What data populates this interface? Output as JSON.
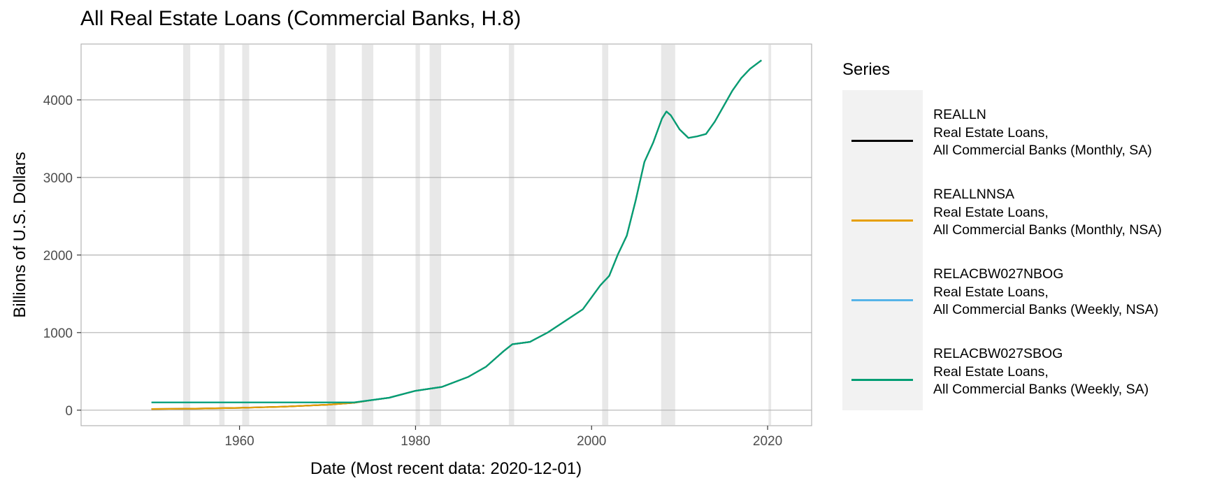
{
  "chart_data": {
    "type": "line",
    "title": "All Real Estate Loans (Commercial Banks, H.8)",
    "xlabel": "Date (Most recent data: 2020-12-01)",
    "ylabel": "Billions of U.S. Dollars",
    "xlim": [
      1942,
      2025
    ],
    "ylim": [
      -200,
      4720
    ],
    "x_ticks": [
      1960,
      1980,
      2000,
      2020
    ],
    "y_ticks": [
      0,
      1000,
      2000,
      3000,
      4000
    ],
    "x_tick_labels": [
      "1960",
      "1980",
      "2000",
      "2020"
    ],
    "y_tick_labels": [
      "0",
      "1000",
      "2000",
      "3000",
      "4000"
    ],
    "grid": "horizontal",
    "legend_position": "right",
    "legend_title": "Series",
    "recessions": [
      [
        1953.6,
        1954.4
      ],
      [
        1957.7,
        1958.3
      ],
      [
        1960.3,
        1961.1
      ],
      [
        1969.9,
        1970.9
      ],
      [
        1973.9,
        1975.2
      ],
      [
        1980.0,
        1980.5
      ],
      [
        1981.6,
        1982.9
      ],
      [
        1990.6,
        1991.2
      ],
      [
        2001.2,
        2001.9
      ],
      [
        2007.9,
        2009.5
      ],
      [
        2020.1,
        2020.4
      ]
    ],
    "recession_color": "#e8e8e8",
    "series": [
      {
        "name": "REALLN",
        "legend_lines": [
          "REALLN",
          "Real Estate Loans,",
          "All Commercial Banks (Monthly, SA)"
        ],
        "color": "#000000",
        "x": [
          1950,
          1955,
          1960,
          1965,
          1970,
          1973,
          1975,
          1977,
          1980,
          1983,
          1986,
          1988,
          1990,
          1991,
          1993,
          1995,
          1997,
          1999,
          2001,
          2002,
          2003,
          2004,
          2005,
          2006,
          2007,
          2008,
          2008.5,
          2009,
          2010,
          2011,
          2012,
          2013,
          2014,
          2015,
          2016,
          2017,
          2018,
          2019.3
        ],
        "y": [
          15,
          20,
          30,
          45,
          70,
          95,
          130,
          160,
          250,
          300,
          430,
          560,
          760,
          850,
          880,
          1000,
          1150,
          1300,
          1610,
          1730,
          2010,
          2250,
          2700,
          3200,
          3450,
          3760,
          3850,
          3800,
          3620,
          3510,
          3530,
          3560,
          3720,
          3920,
          4120,
          4280,
          4400,
          4510
        ]
      },
      {
        "name": "REALLNNSA",
        "legend_lines": [
          "REALLNNSA",
          "Real Estate Loans,",
          "All Commercial Banks (Monthly, NSA)"
        ],
        "color": "#e69f00",
        "x": [
          1950,
          1955,
          1960,
          1965,
          1970,
          1973,
          1975,
          1977,
          1980,
          1983,
          1986,
          1988,
          1990,
          1991,
          1993,
          1995,
          1997,
          1999,
          2001,
          2002,
          2003,
          2004,
          2005,
          2006,
          2007,
          2008,
          2008.5,
          2009,
          2010,
          2011,
          2012,
          2013,
          2014,
          2015,
          2016,
          2017,
          2018,
          2019.3
        ],
        "y": [
          15,
          20,
          30,
          45,
          70,
          95,
          130,
          160,
          250,
          300,
          430,
          560,
          760,
          850,
          880,
          1000,
          1150,
          1300,
          1610,
          1730,
          2010,
          2250,
          2700,
          3200,
          3450,
          3760,
          3850,
          3800,
          3620,
          3510,
          3530,
          3560,
          3720,
          3920,
          4120,
          4280,
          4400,
          4510
        ]
      },
      {
        "name": "RELACBW027NBOG",
        "legend_lines": [
          "RELACBW027NBOG",
          "Real Estate Loans,",
          "All Commercial Banks (Weekly, NSA)"
        ],
        "color": "#56b4e9",
        "x": [
          1950,
          1973,
          1975,
          1977,
          1980,
          1983,
          1986,
          1988,
          1990,
          1991,
          1993,
          1995,
          1997,
          1999,
          2001,
          2002,
          2003,
          2004,
          2005,
          2006,
          2007,
          2008,
          2008.5,
          2009,
          2010,
          2011,
          2012,
          2013,
          2014,
          2015,
          2016,
          2017,
          2018,
          2019.3
        ],
        "y": [
          100,
          100,
          130,
          160,
          250,
          300,
          430,
          560,
          760,
          850,
          880,
          1000,
          1150,
          1300,
          1610,
          1730,
          2010,
          2250,
          2700,
          3200,
          3450,
          3760,
          3850,
          3800,
          3620,
          3510,
          3530,
          3560,
          3720,
          3920,
          4120,
          4280,
          4400,
          4510
        ]
      },
      {
        "name": "RELACBW027SBOG",
        "legend_lines": [
          "RELACBW027SBOG",
          "Real Estate Loans,",
          "All Commercial Banks (Weekly, SA)"
        ],
        "color": "#009e73",
        "x": [
          1950,
          1973,
          1975,
          1977,
          1980,
          1983,
          1986,
          1988,
          1990,
          1991,
          1993,
          1995,
          1997,
          1999,
          2001,
          2002,
          2003,
          2004,
          2005,
          2006,
          2007,
          2008,
          2008.5,
          2009,
          2010,
          2011,
          2012,
          2013,
          2014,
          2015,
          2016,
          2017,
          2018,
          2019.3
        ],
        "y": [
          100,
          100,
          130,
          160,
          250,
          300,
          430,
          560,
          760,
          850,
          880,
          1000,
          1150,
          1300,
          1610,
          1730,
          2010,
          2250,
          2700,
          3200,
          3450,
          3760,
          3850,
          3800,
          3620,
          3510,
          3530,
          3560,
          3720,
          3920,
          4120,
          4280,
          4400,
          4510
        ]
      }
    ]
  }
}
